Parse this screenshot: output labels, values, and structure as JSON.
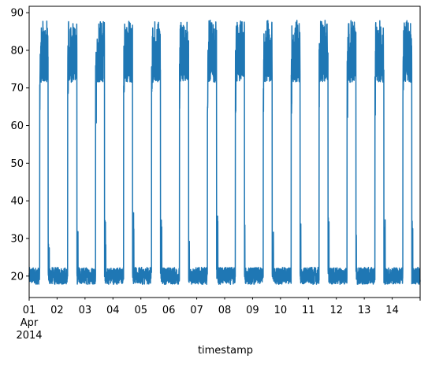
{
  "chart_data": {
    "type": "line",
    "title": "",
    "xlabel": "timestamp",
    "ylabel": "",
    "x_unit": "day of April 2014",
    "xlim": [
      1,
      15
    ],
    "ylim": [
      14.3,
      91.7
    ],
    "grid": false,
    "yticks": [
      20,
      30,
      40,
      50,
      60,
      70,
      80,
      90
    ],
    "xticks": [
      {
        "day": 1,
        "lines": [
          "01",
          "Apr",
          "2014"
        ]
      },
      {
        "day": 2,
        "lines": [
          "02"
        ]
      },
      {
        "day": 3,
        "lines": [
          "03"
        ]
      },
      {
        "day": 4,
        "lines": [
          "04"
        ]
      },
      {
        "day": 5,
        "lines": [
          "05"
        ]
      },
      {
        "day": 6,
        "lines": [
          "06"
        ]
      },
      {
        "day": 7,
        "lines": [
          "07"
        ]
      },
      {
        "day": 8,
        "lines": [
          "08"
        ]
      },
      {
        "day": 9,
        "lines": [
          "09"
        ]
      },
      {
        "day": 10,
        "lines": [
          "10"
        ]
      },
      {
        "day": 11,
        "lines": [
          "11"
        ]
      },
      {
        "day": 12,
        "lines": [
          "12"
        ]
      },
      {
        "day": 13,
        "lines": [
          "13"
        ]
      },
      {
        "day": 14,
        "lines": [
          "14"
        ]
      }
    ],
    "series": [
      {
        "color": "#1f77b4",
        "description": "daily square-wave cycle: low ~18-22 overnight, high ~72-88 during working hours",
        "low_band": [
          17.8,
          22.3
        ],
        "high_band": [
          71.5,
          88.0
        ],
        "episodes": [
          {
            "rise": 1.38,
            "fall": 1.68
          },
          {
            "rise": 2.38,
            "fall": 2.71
          },
          {
            "rise": 3.38,
            "fall": 3.7
          },
          {
            "rise": 4.38,
            "fall": 4.7
          },
          {
            "rise": 5.38,
            "fall": 5.7
          },
          {
            "rise": 6.38,
            "fall": 6.71
          },
          {
            "rise": 7.38,
            "fall": 7.71
          },
          {
            "rise": 8.38,
            "fall": 8.71
          },
          {
            "rise": 9.38,
            "fall": 9.7
          },
          {
            "rise": 10.38,
            "fall": 10.7
          },
          {
            "rise": 11.38,
            "fall": 11.7
          },
          {
            "rise": 12.38,
            "fall": 12.7
          },
          {
            "rise": 13.38,
            "fall": 13.7
          },
          {
            "rise": 14.38,
            "fall": 14.7
          }
        ]
      }
    ]
  }
}
